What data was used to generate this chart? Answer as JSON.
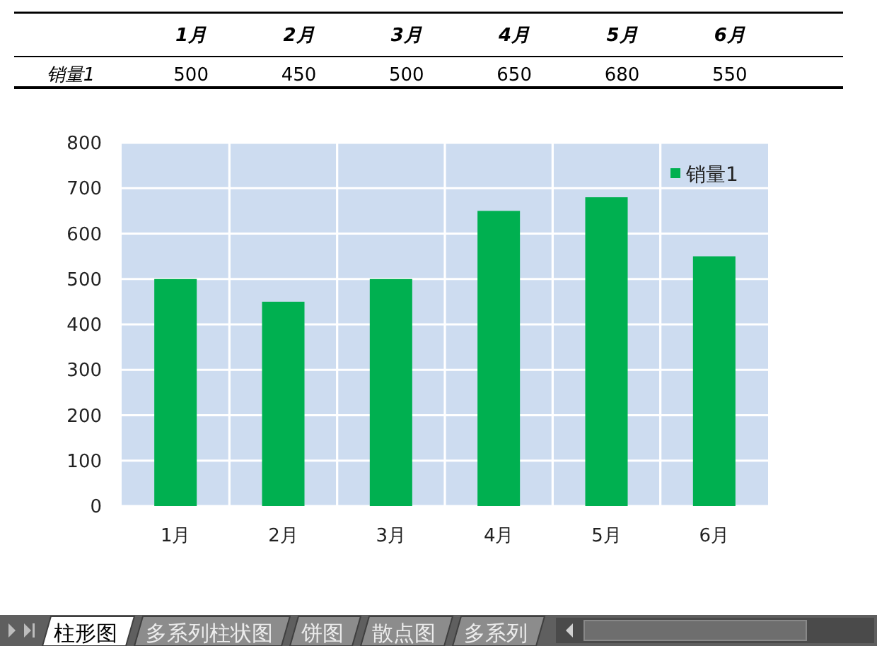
{
  "chart_data": {
    "type": "bar",
    "categories": [
      "1月",
      "2月",
      "3月",
      "4月",
      "5月",
      "6月"
    ],
    "series": [
      {
        "name": "销量1",
        "color": "#00b050",
        "values": [
          500,
          450,
          500,
          650,
          680,
          550
        ]
      }
    ],
    "ylim": [
      0,
      800
    ],
    "yticks": [
      0,
      100,
      200,
      300,
      400,
      500,
      600,
      700,
      800
    ],
    "grid": true,
    "legend": "top right",
    "data_labels": true,
    "annotations": [
      "柱形图",
      "多系列柱状图",
      "饼图",
      "散点图",
      "多系列"
    ]
  }
}
